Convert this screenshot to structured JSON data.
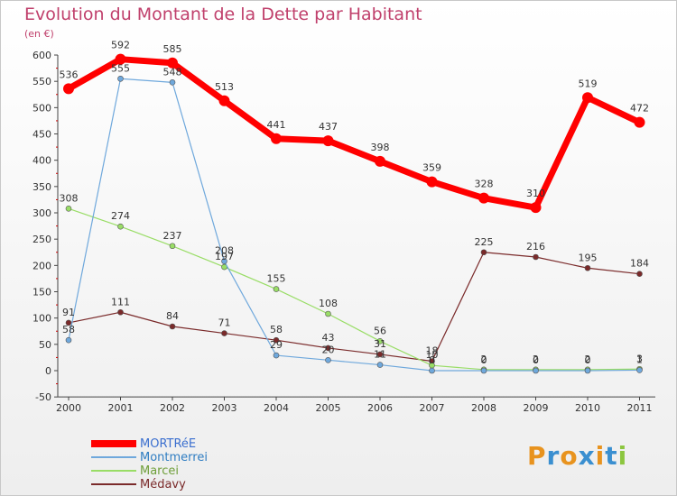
{
  "header": {
    "title": "Evolution du Montant de la Dette par Habitant",
    "subtitle": "(en €)"
  },
  "logo": {
    "text": "Proxiti",
    "colors": [
      "#e8931e",
      "#3a8fd0",
      "#e8931e",
      "#3a8fd0",
      "#e8931e",
      "#3a8fd0",
      "#8cc63f"
    ]
  },
  "chart_data": {
    "type": "line",
    "title": "Evolution du Montant de la Dette par Habitant",
    "subtitle": "(en €)",
    "xlabel": "",
    "ylabel": "",
    "x": [
      "2000",
      "2001",
      "2002",
      "2003",
      "2004",
      "2005",
      "2006",
      "2007",
      "2008",
      "2009",
      "2010",
      "2011"
    ],
    "ylim": [
      -50,
      600
    ],
    "yticks": [
      "-50",
      "0",
      "50",
      "100",
      "150",
      "200",
      "250",
      "300",
      "350",
      "400",
      "450",
      "500",
      "550",
      "600"
    ],
    "grid": false,
    "legend_position": "bottom-left",
    "series": [
      {
        "name": "MORTRéE",
        "color": "#ff0000",
        "values": [
          536,
          592,
          585,
          513,
          441,
          437,
          398,
          359,
          328,
          310,
          519,
          472
        ],
        "labels": [
          "536",
          "592",
          "585",
          "513",
          "441",
          "437",
          "398",
          "359",
          "328",
          "310",
          "519",
          "472"
        ]
      },
      {
        "name": "Montmerrei",
        "color": "#6fa8dc",
        "values": [
          58,
          555,
          548,
          208,
          29,
          20,
          11,
          0,
          0,
          0,
          0,
          1
        ],
        "labels": [
          "58",
          "555",
          "548",
          "208",
          "29",
          "20",
          "11",
          "0",
          "0",
          "0",
          "0",
          "1"
        ]
      },
      {
        "name": "Marcei",
        "color": "#99dd66",
        "values": [
          308,
          274,
          237,
          197,
          155,
          108,
          56,
          10,
          2,
          2,
          2,
          3
        ],
        "labels": [
          "308",
          "274",
          "237",
          "197",
          "155",
          "108",
          "56",
          "10",
          "2",
          "2",
          "2",
          "3"
        ]
      },
      {
        "name": "Médavy",
        "color": "#7a2a2a",
        "values": [
          91,
          111,
          84,
          71,
          58,
          43,
          31,
          18,
          225,
          216,
          195,
          184
        ],
        "labels": [
          "91",
          "111",
          "84",
          "71",
          "58",
          "43",
          "31",
          "18",
          "225",
          "216",
          "195",
          "184"
        ]
      }
    ]
  }
}
